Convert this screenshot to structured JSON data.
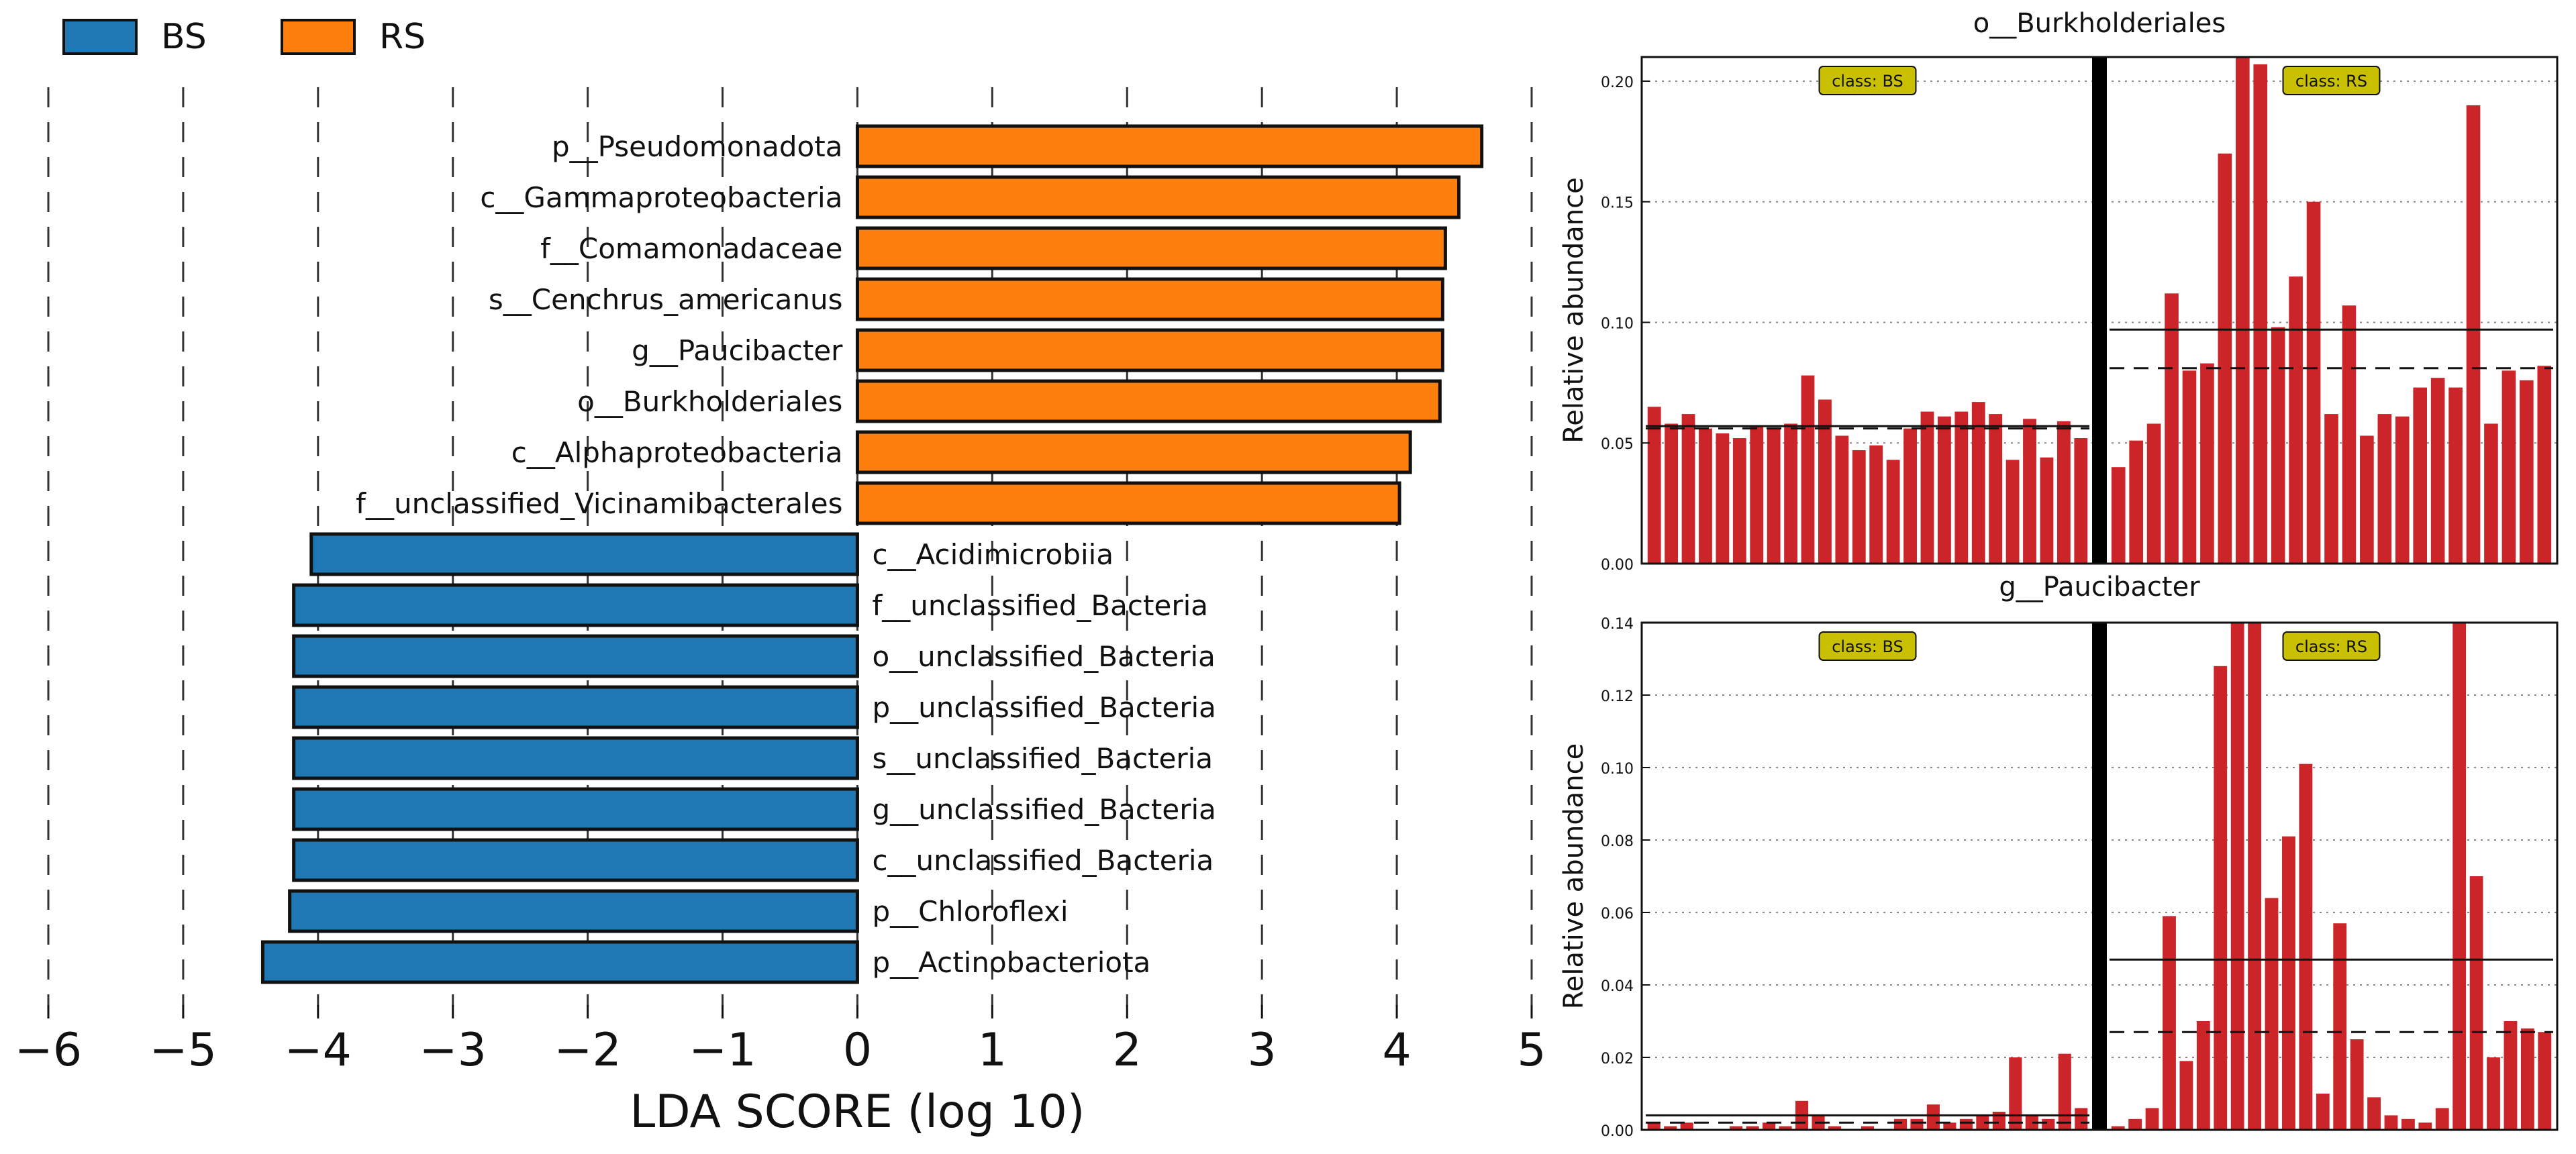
{
  "legend": [
    {
      "label": "BS",
      "color": "#1f77b4"
    },
    {
      "label": "RS",
      "color": "#ff7f0e"
    }
  ],
  "chart_data": [
    {
      "type": "bar",
      "orientation": "horizontal",
      "xlabel": "LDA SCORE (log 10)",
      "xlim": [
        -6,
        5
      ],
      "xticks": [
        -6,
        -5,
        -4,
        -3,
        -2,
        -1,
        0,
        1,
        2,
        3,
        4,
        5
      ],
      "xtick_labels": [
        "−6",
        "−5",
        "−4",
        "−3",
        "−2",
        "−1",
        "0",
        "1",
        "2",
        "3",
        "4",
        "5"
      ],
      "grid": "vertical dashed",
      "legend_position": "top-left",
      "series": [
        {
          "name": "BS",
          "color": "#1f77b4"
        },
        {
          "name": "RS",
          "color": "#ff7f0e"
        }
      ],
      "bars": [
        {
          "label": "p__Pseudomonadota",
          "value": 4.63,
          "class": "RS"
        },
        {
          "label": "c__Gammaproteobacteria",
          "value": 4.46,
          "class": "RS"
        },
        {
          "label": "f__Comamonadaceae",
          "value": 4.36,
          "class": "RS"
        },
        {
          "label": "s__Cenchrus_americanus",
          "value": 4.34,
          "class": "RS"
        },
        {
          "label": "g__Paucibacter",
          "value": 4.34,
          "class": "RS"
        },
        {
          "label": "o__Burkholderiales",
          "value": 4.32,
          "class": "RS"
        },
        {
          "label": "c__Alphaproteobacteria",
          "value": 4.1,
          "class": "RS"
        },
        {
          "label": "f__unclassified_Vicinamibacterales",
          "value": 4.02,
          "class": "RS"
        },
        {
          "label": "c__Acidimicrobiia",
          "value": -4.05,
          "class": "BS"
        },
        {
          "label": "f__unclassified_Bacteria",
          "value": -4.18,
          "class": "BS"
        },
        {
          "label": "o__unclassified_Bacteria",
          "value": -4.18,
          "class": "BS"
        },
        {
          "label": "p__unclassified_Bacteria",
          "value": -4.18,
          "class": "BS"
        },
        {
          "label": "s__unclassified_Bacteria",
          "value": -4.18,
          "class": "BS"
        },
        {
          "label": "g__unclassified_Bacteria",
          "value": -4.18,
          "class": "BS"
        },
        {
          "label": "c__unclassified_Bacteria",
          "value": -4.18,
          "class": "BS"
        },
        {
          "label": "p__Chloroflexi",
          "value": -4.21,
          "class": "BS"
        },
        {
          "label": "p__Actinobacteriota",
          "value": -4.41,
          "class": "BS"
        }
      ]
    },
    {
      "type": "bar",
      "title": "o__Burkholderiales",
      "ylabel": "Relative abundance",
      "ylim": [
        0,
        0.21
      ],
      "yticks": [
        0,
        0.05,
        0.1,
        0.15,
        0.2
      ],
      "ytick_labels": [
        "0.00",
        "0.05",
        "0.10",
        "0.15",
        "0.20"
      ],
      "bar_color": "#cc2529",
      "grid": "horizontal dotted",
      "classes": [
        {
          "label": "class: BS",
          "values": [
            0.065,
            0.058,
            0.062,
            0.056,
            0.054,
            0.052,
            0.057,
            0.056,
            0.058,
            0.078,
            0.068,
            0.053,
            0.047,
            0.049,
            0.043,
            0.056,
            0.063,
            0.061,
            0.063,
            0.067,
            0.062,
            0.043,
            0.06,
            0.044,
            0.059,
            0.052
          ],
          "mean": 0.057,
          "median": 0.056
        },
        {
          "label": "class: RS",
          "values": [
            0.04,
            0.051,
            0.058,
            0.112,
            0.08,
            0.083,
            0.17,
            0.21,
            0.207,
            0.098,
            0.119,
            0.15,
            0.062,
            0.107,
            0.053,
            0.062,
            0.061,
            0.073,
            0.077,
            0.073,
            0.19,
            0.058,
            0.08,
            0.076,
            0.082
          ],
          "mean": 0.097,
          "median": 0.081
        }
      ]
    },
    {
      "type": "bar",
      "title": "g__Paucibacter",
      "ylabel": "Relative abundance",
      "ylim": [
        0,
        0.14
      ],
      "yticks": [
        0,
        0.02,
        0.04,
        0.06,
        0.08,
        0.1,
        0.12,
        0.14
      ],
      "ytick_labels": [
        "0.00",
        "0.02",
        "0.04",
        "0.06",
        "0.08",
        "0.10",
        "0.12",
        "0.14"
      ],
      "bar_color": "#cc2529",
      "grid": "horizontal dotted",
      "classes": [
        {
          "label": "class: BS",
          "values": [
            0.002,
            0.001,
            0.002,
            0.0,
            0.0,
            0.001,
            0.001,
            0.002,
            0.001,
            0.008,
            0.004,
            0.001,
            0.0,
            0.001,
            0.0,
            0.003,
            0.003,
            0.007,
            0.002,
            0.003,
            0.004,
            0.005,
            0.02,
            0.004,
            0.003,
            0.021,
            0.006
          ],
          "mean": 0.004,
          "median": 0.002
        },
        {
          "label": "class: RS",
          "values": [
            0.001,
            0.003,
            0.006,
            0.059,
            0.019,
            0.03,
            0.128,
            0.14,
            0.14,
            0.064,
            0.081,
            0.101,
            0.01,
            0.057,
            0.025,
            0.009,
            0.004,
            0.003,
            0.002,
            0.006,
            0.14,
            0.07,
            0.02,
            0.03,
            0.028,
            0.027
          ],
          "mean": 0.047,
          "median": 0.027
        }
      ]
    }
  ]
}
